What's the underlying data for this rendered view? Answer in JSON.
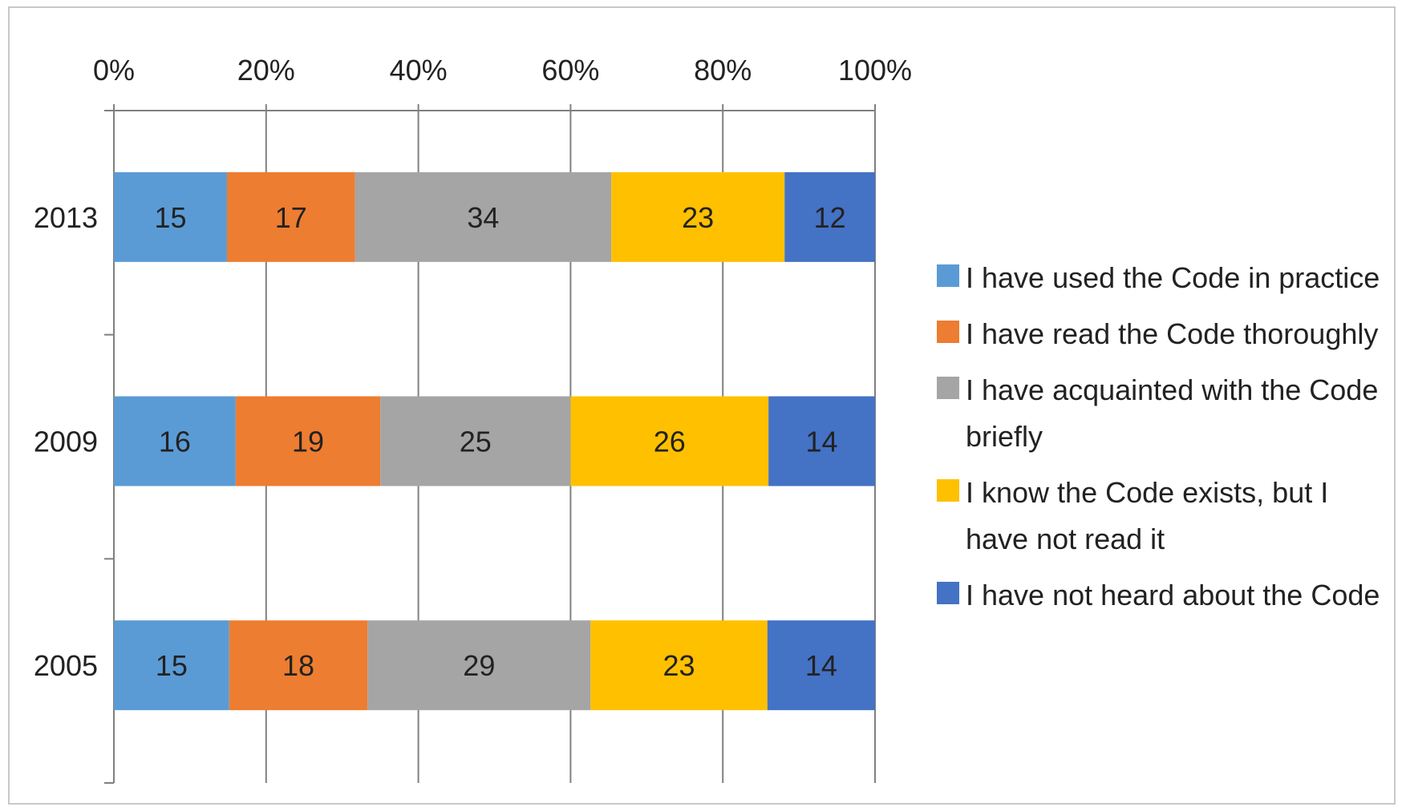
{
  "chart_data": {
    "type": "bar",
    "orientation": "horizontal",
    "stacked": true,
    "percent_stacked": true,
    "categories": [
      "2013",
      "2009",
      "2005"
    ],
    "series": [
      {
        "name": "I have used the Code in practice",
        "values": [
          15,
          16,
          15
        ],
        "color": "#5b9bd5"
      },
      {
        "name": "I have read the Code thoroughly",
        "values": [
          17,
          19,
          18
        ],
        "color": "#ed7d31"
      },
      {
        "name": "I have acquainted with the Code briefly",
        "values": [
          34,
          25,
          29
        ],
        "color": "#a5a5a5"
      },
      {
        "name": "I know the Code exists, but I have not read it",
        "values": [
          23,
          26,
          23
        ],
        "color": "#ffc000"
      },
      {
        "name": "I have not heard about the Code",
        "values": [
          12,
          14,
          14
        ],
        "color": "#4472c4"
      }
    ],
    "x_axis": {
      "position": "top",
      "range": [
        0,
        100
      ],
      "ticks": [
        "0%",
        "20%",
        "40%",
        "60%",
        "80%",
        "100%"
      ]
    },
    "grid": true,
    "legend": "right"
  }
}
